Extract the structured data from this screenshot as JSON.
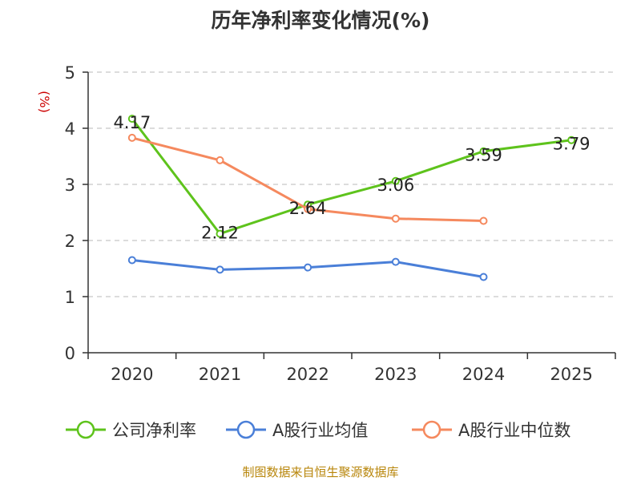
{
  "title": "历年净利率变化情况(%)",
  "source": "制图数据来自恒生聚源数据库",
  "colors": {
    "green": "#5ec31c",
    "blue": "#4a7fd8",
    "orange": "#f5895e",
    "grid": "#c8c8c8",
    "axis": "#333333",
    "unit": "#cc0000",
    "source": "#b8860b"
  },
  "chart_data": {
    "type": "line",
    "title": "历年净利率变化情况(%)",
    "ylabel": "(%)",
    "ylim": [
      0,
      5
    ],
    "yticks": [
      0,
      1,
      2,
      3,
      4,
      5
    ],
    "categories": [
      "2020",
      "2021",
      "2022",
      "2023",
      "2024",
      "2025"
    ],
    "grid": true,
    "legend": "bottom",
    "series": [
      {
        "name": "公司净利率",
        "color": "#5ec31c",
        "values": [
          4.17,
          2.12,
          2.64,
          3.06,
          3.59,
          3.79
        ],
        "labels": [
          "4.17",
          "2.12",
          "2.64",
          "3.06",
          "3.59",
          "3.79"
        ]
      },
      {
        "name": "A股行业均值",
        "color": "#4a7fd8",
        "values": [
          1.65,
          1.48,
          1.52,
          1.62,
          1.35,
          null
        ]
      },
      {
        "name": "A股行业中位数",
        "color": "#f5895e",
        "values": [
          3.83,
          3.43,
          2.56,
          2.39,
          2.35,
          null
        ]
      }
    ]
  }
}
